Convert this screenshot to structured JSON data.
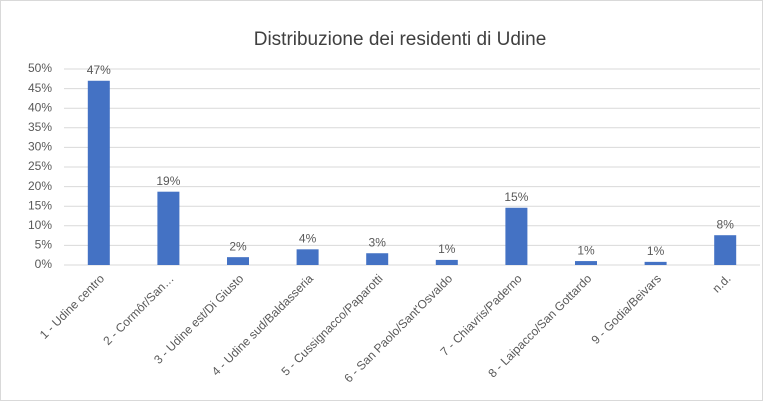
{
  "chart_data": {
    "type": "bar",
    "title": "Distribuzione dei residenti  di Udine",
    "categories": [
      "1 - Udine centro",
      "2 - Cormôr/San…",
      "3 - Udine est/Di Giusto",
      "4 - Udine sud/Baldasseria",
      "5 - Cussignacco/Paparotti",
      "6 - San Paolo/Sant'Osvaldo",
      "7 - Chiavris/Paderno",
      "8 - Laipacco/San Gottardo",
      "9 - Godia/Beivars",
      "n.d."
    ],
    "values": [
      47,
      18.7,
      2,
      4,
      3,
      1.3,
      14.6,
      1,
      0.8,
      7.6
    ],
    "value_labels": [
      "47%",
      "19%",
      "2%",
      "4%",
      "3%",
      "1%",
      "15%",
      "1%",
      "1%",
      "8%"
    ],
    "color": "#4472c4",
    "ylim": [
      0,
      50
    ],
    "yticks": [
      {
        "value": 0,
        "label": "0%"
      },
      {
        "value": 5,
        "label": "5%"
      },
      {
        "value": 10,
        "label": "10%"
      },
      {
        "value": 15,
        "label": "15%"
      },
      {
        "value": 20,
        "label": "20%"
      },
      {
        "value": 25,
        "label": "25%"
      },
      {
        "value": 30,
        "label": "30%"
      },
      {
        "value": 35,
        "label": "35%"
      },
      {
        "value": 40,
        "label": "40%"
      },
      {
        "value": 45,
        "label": "45%"
      },
      {
        "value": 50,
        "label": "50%"
      }
    ],
    "grid": true
  }
}
